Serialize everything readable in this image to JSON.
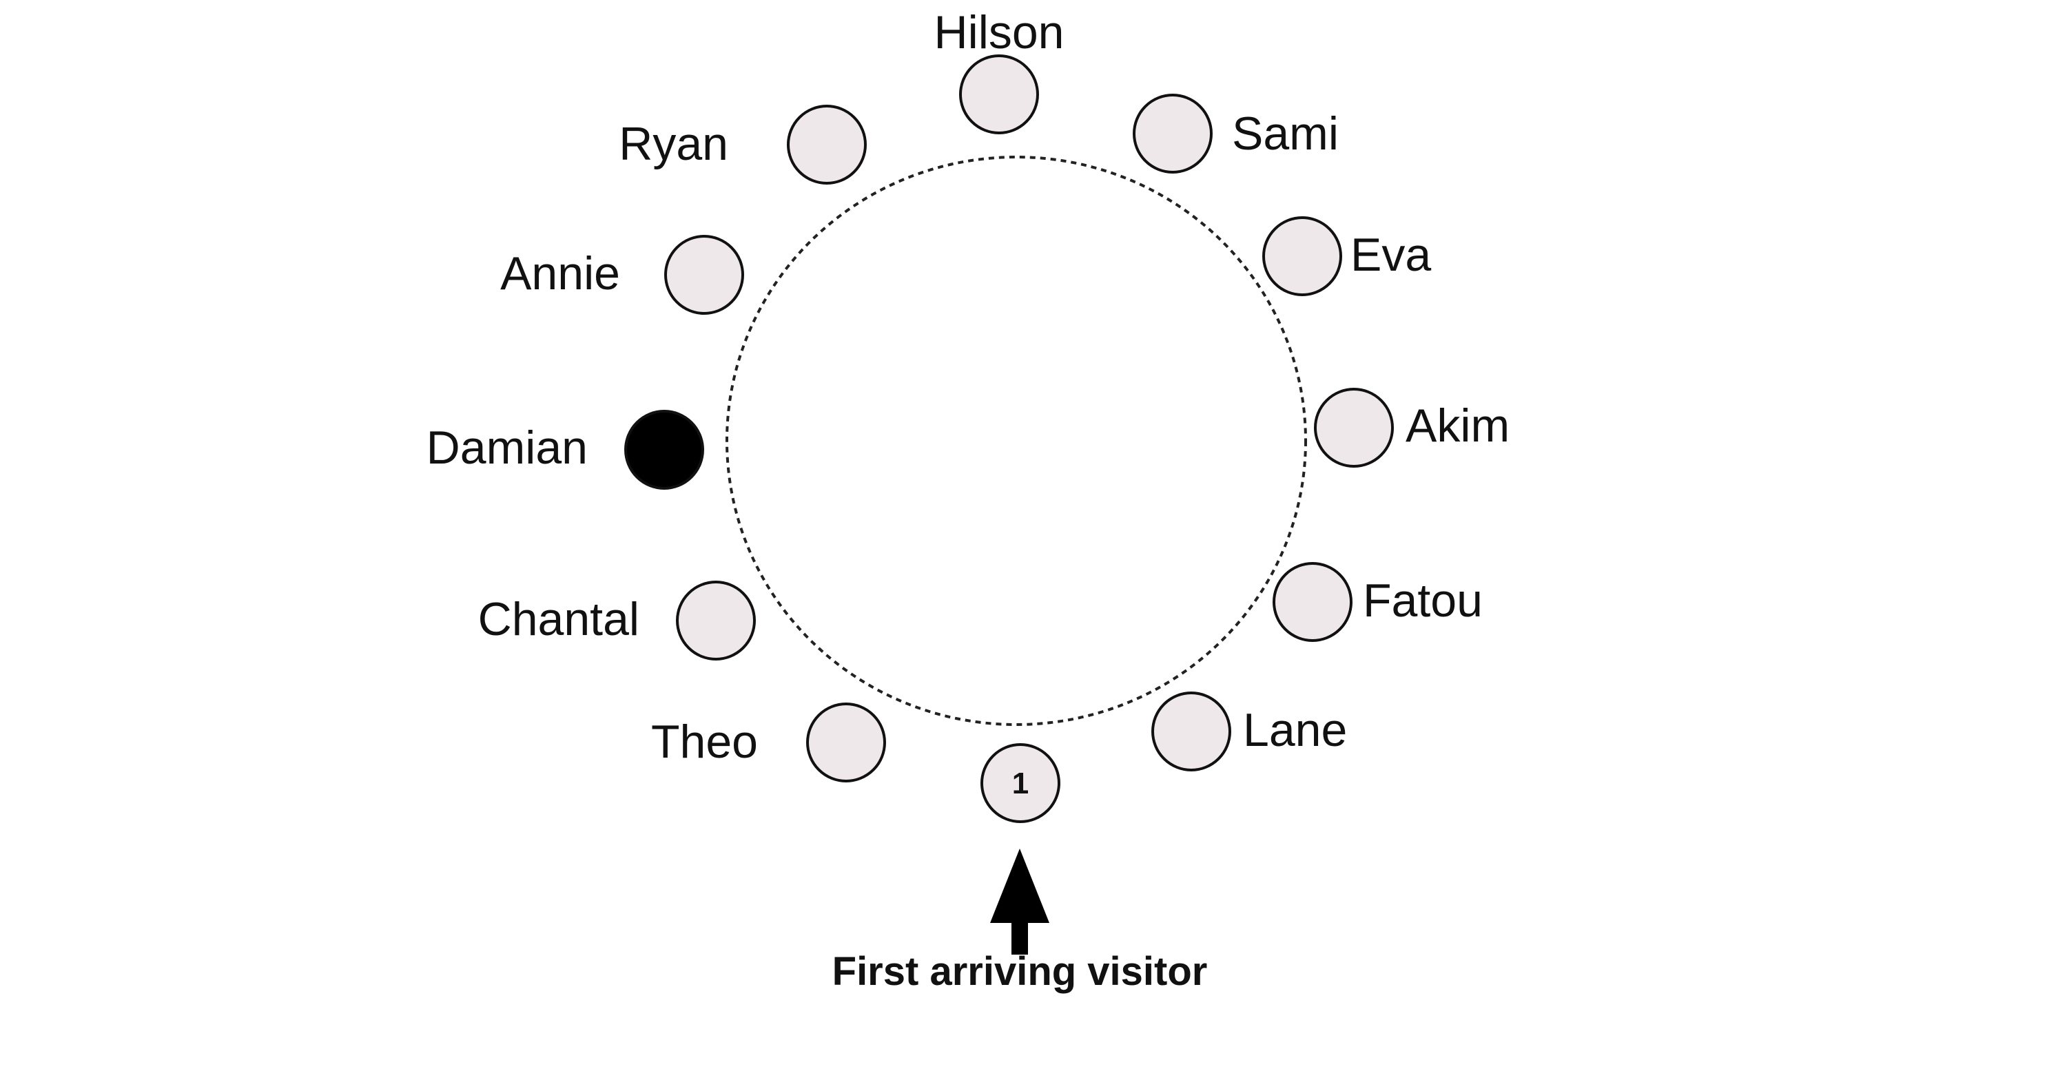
{
  "colors": {
    "seat_fill": "#EEE8EA",
    "seat_stroke": "#111111",
    "occupied_fill": "#000000",
    "ring_stroke": "#222222",
    "text": "#111111"
  },
  "seats": [
    {
      "name": "Hilson",
      "occupied": false,
      "number": ""
    },
    {
      "name": "Sami",
      "occupied": false,
      "number": ""
    },
    {
      "name": "Eva",
      "occupied": false,
      "number": ""
    },
    {
      "name": "Akim",
      "occupied": false,
      "number": ""
    },
    {
      "name": "Fatou",
      "occupied": false,
      "number": ""
    },
    {
      "name": "Lane",
      "occupied": false,
      "number": ""
    },
    {
      "name": "",
      "occupied": false,
      "number": "1"
    },
    {
      "name": "Theo",
      "occupied": false,
      "number": ""
    },
    {
      "name": "Chantal",
      "occupied": false,
      "number": ""
    },
    {
      "name": "Damian",
      "occupied": true,
      "number": ""
    },
    {
      "name": "Annie",
      "occupied": false,
      "number": ""
    },
    {
      "name": "Ryan",
      "occupied": false,
      "number": ""
    }
  ],
  "arrow_label": "First arriving visitor"
}
